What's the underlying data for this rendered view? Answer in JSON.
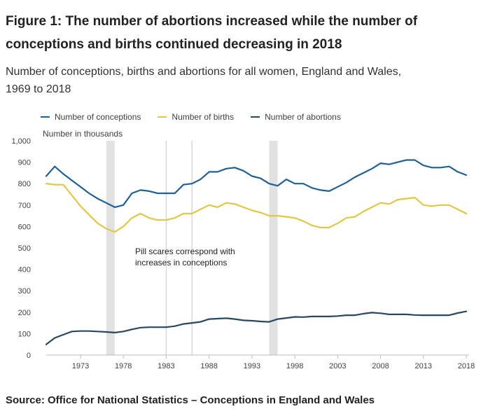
{
  "figure": {
    "title": "Figure 1: The number of abortions increased while the number of conceptions and births continued decreasing in 2018",
    "subtitle": "Number of conceptions, births and abortions for all women, England and Wales, 1969 to 2018",
    "source": "Source: Office for National Statistics – Conceptions in England and Wales"
  },
  "chart_data": {
    "type": "line",
    "ylabel": "Number in thousands",
    "ylim": [
      0,
      1000
    ],
    "yticks": [
      0,
      100,
      200,
      300,
      400,
      500,
      600,
      700,
      800,
      900,
      1000
    ],
    "ytick_labels": [
      "0",
      "100",
      "200",
      "300",
      "400",
      "500",
      "600",
      "700",
      "800",
      "900",
      "1,000"
    ],
    "xlim": [
      1969,
      2018
    ],
    "xticks": [
      1973,
      1978,
      1983,
      1988,
      1993,
      1998,
      2003,
      2008,
      2013,
      2018
    ],
    "xtick_labels": [
      "1973",
      "1978",
      "1983",
      "1988",
      "1993",
      "1998",
      "2003",
      "2008",
      "2013",
      "2018"
    ],
    "grid": false,
    "legend_position": "top",
    "x": [
      1969,
      1970,
      1971,
      1972,
      1973,
      1974,
      1975,
      1976,
      1977,
      1978,
      1979,
      1980,
      1981,
      1982,
      1983,
      1984,
      1985,
      1986,
      1987,
      1988,
      1989,
      1990,
      1991,
      1992,
      1993,
      1994,
      1995,
      1996,
      1997,
      1998,
      1999,
      2000,
      2001,
      2002,
      2003,
      2004,
      2005,
      2006,
      2007,
      2008,
      2009,
      2010,
      2011,
      2012,
      2013,
      2014,
      2015,
      2016,
      2017,
      2018
    ],
    "series": [
      {
        "name": "Number of conceptions",
        "color": "#206095",
        "values": [
          835,
          880,
          845,
          815,
          785,
          755,
          730,
          710,
          690,
          700,
          755,
          770,
          765,
          755,
          755,
          755,
          795,
          800,
          820,
          855,
          855,
          870,
          875,
          860,
          835,
          825,
          800,
          790,
          820,
          800,
          800,
          780,
          770,
          765,
          785,
          805,
          830,
          850,
          870,
          895,
          890,
          900,
          910,
          910,
          885,
          875,
          875,
          880,
          855,
          840
        ]
      },
      {
        "name": "Number of births",
        "color": "#e0c744",
        "values": [
          800,
          795,
          795,
          745,
          695,
          655,
          615,
          590,
          575,
          600,
          640,
          660,
          640,
          630,
          630,
          640,
          660,
          660,
          680,
          700,
          690,
          710,
          705,
          690,
          675,
          665,
          650,
          650,
          645,
          640,
          625,
          605,
          595,
          595,
          615,
          640,
          645,
          670,
          690,
          710,
          705,
          725,
          730,
          735,
          700,
          695,
          700,
          700,
          680,
          660
        ]
      },
      {
        "name": "Number of abortions",
        "color": "#27485f",
        "values": [
          50,
          80,
          95,
          110,
          112,
          112,
          110,
          108,
          105,
          110,
          120,
          128,
          130,
          130,
          130,
          135,
          145,
          150,
          155,
          168,
          170,
          172,
          168,
          162,
          160,
          157,
          155,
          168,
          173,
          178,
          177,
          180,
          180,
          180,
          182,
          186,
          186,
          193,
          198,
          195,
          190,
          190,
          190,
          187,
          186,
          186,
          186,
          186,
          196,
          204
        ]
      }
    ],
    "shaded_periods": [
      [
        1976,
        1977
      ],
      [
        1995,
        1996
      ]
    ],
    "reference_years": [
      1983,
      1986
    ],
    "annotation": {
      "line1": "Pill scares correspond with",
      "line2": "increases in conceptions"
    }
  }
}
